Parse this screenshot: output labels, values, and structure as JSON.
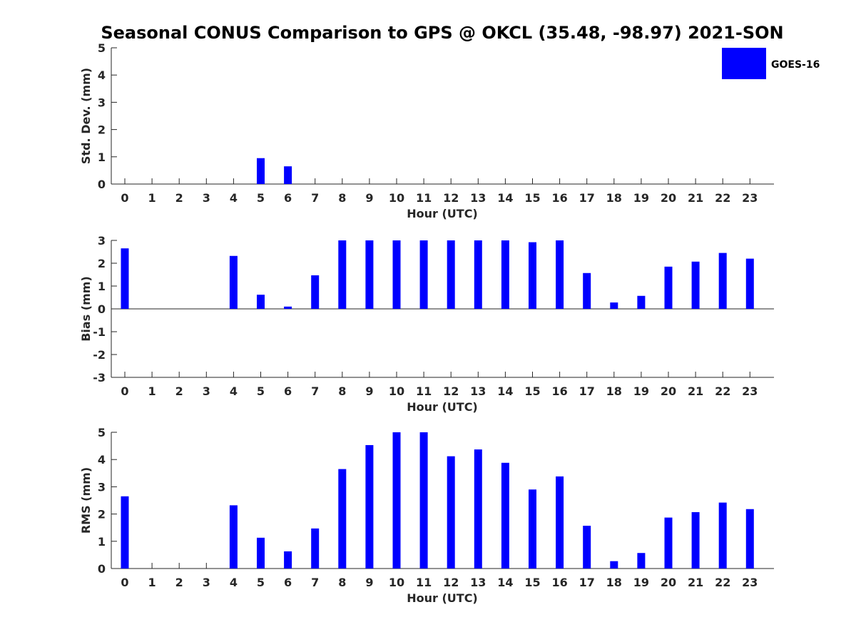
{
  "chart_data": [
    {
      "type": "bar",
      "title": "Seasonal CONUS Comparison to GPS @ OKCL (35.48, -98.97) 2021-SON",
      "xlabel": "Hour (UTC)",
      "ylabel": "Std. Dev. (mm)",
      "ylim": [
        0,
        5
      ],
      "yticks": [
        0,
        1,
        2,
        3,
        4,
        5
      ],
      "categories": [
        "0",
        "1",
        "2",
        "3",
        "4",
        "5",
        "6",
        "7",
        "8",
        "9",
        "10",
        "11",
        "12",
        "13",
        "14",
        "15",
        "16",
        "17",
        "18",
        "19",
        "20",
        "21",
        "22",
        "23"
      ],
      "series": [
        {
          "name": "GOES-16",
          "color": "#0000ff",
          "values": [
            0,
            0,
            0,
            0,
            0,
            0.95,
            0.65,
            0,
            0,
            0,
            0,
            0,
            0,
            0,
            0,
            0,
            0,
            0,
            0,
            0,
            0,
            0,
            0,
            0
          ]
        }
      ],
      "legend": "top-right",
      "grid": false
    },
    {
      "type": "bar",
      "xlabel": "Hour (UTC)",
      "ylabel": "Bias (mm)",
      "ylim": [
        -3,
        3
      ],
      "yticks": [
        -3,
        -2,
        -1,
        0,
        1,
        2,
        3
      ],
      "categories": [
        "0",
        "1",
        "2",
        "3",
        "4",
        "5",
        "6",
        "7",
        "8",
        "9",
        "10",
        "11",
        "12",
        "13",
        "14",
        "15",
        "16",
        "17",
        "18",
        "19",
        "20",
        "21",
        "22",
        "23"
      ],
      "series": [
        {
          "name": "GOES-16",
          "color": "#0000ff",
          "values": [
            2.65,
            0,
            0,
            0,
            2.32,
            0.62,
            0.1,
            1.47,
            3.0,
            3.0,
            3.0,
            3.0,
            3.0,
            3.0,
            3.0,
            2.92,
            3.0,
            1.57,
            0.28,
            0.57,
            1.85,
            2.07,
            2.45,
            2.2
          ]
        }
      ],
      "grid": false
    },
    {
      "type": "bar",
      "xlabel": "Hour (UTC)",
      "ylabel": "RMS (mm)",
      "ylim": [
        0,
        5
      ],
      "yticks": [
        0,
        1,
        2,
        3,
        4,
        5
      ],
      "categories": [
        "0",
        "1",
        "2",
        "3",
        "4",
        "5",
        "6",
        "7",
        "8",
        "9",
        "10",
        "11",
        "12",
        "13",
        "14",
        "15",
        "16",
        "17",
        "18",
        "19",
        "20",
        "21",
        "22",
        "23"
      ],
      "series": [
        {
          "name": "GOES-16",
          "color": "#0000ff",
          "values": [
            2.65,
            0,
            0,
            0,
            2.32,
            1.13,
            0.63,
            1.47,
            3.65,
            4.53,
            5.0,
            5.0,
            4.12,
            4.37,
            3.88,
            2.9,
            3.38,
            1.57,
            0.27,
            0.57,
            1.87,
            2.07,
            2.42,
            2.18
          ]
        }
      ],
      "grid": false
    }
  ]
}
